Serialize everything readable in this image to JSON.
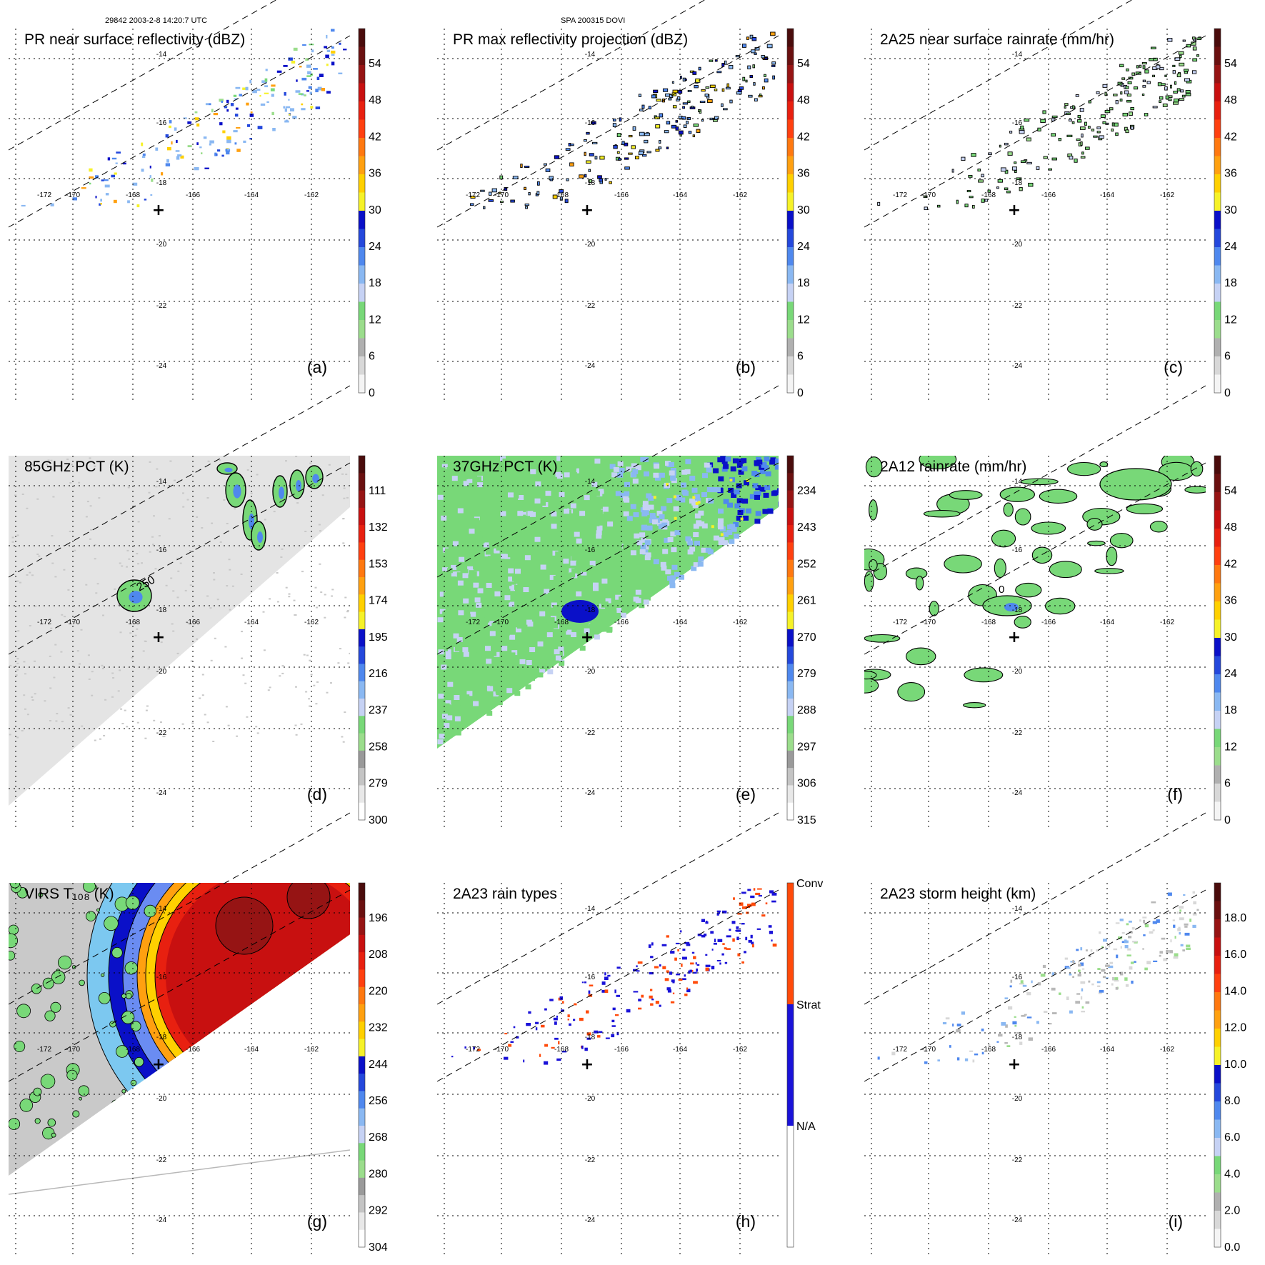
{
  "header": {
    "orbit_time": "29842 2003-2-8 14:20:7 UTC",
    "storm_id": "SPA 200315 DOVI"
  },
  "map": {
    "lon_labels": [
      "-172",
      "-170",
      "-168",
      "-166",
      "-164",
      "-162"
    ],
    "lat_labels": [
      "-14",
      "-16",
      "-18",
      "-20",
      "-22",
      "-24"
    ],
    "center_marker": "+"
  },
  "chart_data": [
    {
      "type": "heatmap",
      "panel": "(a)",
      "title": "PR near surface reflectivity (dBZ)",
      "cbar_ticks": [
        "54",
        "48",
        "42",
        "36",
        "30",
        "24",
        "18",
        "12",
        "6",
        "0"
      ],
      "field": "pr_swath_sparse",
      "contour_label": ""
    },
    {
      "type": "heatmap",
      "panel": "(b)",
      "title": "PR max reflectivity projection (dBZ)",
      "cbar_ticks": [
        "54",
        "48",
        "42",
        "36",
        "30",
        "24",
        "18",
        "12",
        "6",
        "0"
      ],
      "field": "pr_swath_outlined",
      "contour_label": ""
    },
    {
      "type": "heatmap",
      "panel": "(c)",
      "title": "2A25 near surface rainrate (mm/hr)",
      "cbar_ticks": [
        "54",
        "48",
        "42",
        "36",
        "30",
        "24",
        "18",
        "12",
        "6",
        "0"
      ],
      "field": "pr_rain",
      "contour_label": ""
    },
    {
      "type": "heatmap",
      "panel": "(d)",
      "title": "85GHz PCT (K)",
      "cbar_ticks": [
        "111",
        "132",
        "153",
        "174",
        "195",
        "216",
        "237",
        "258",
        "279",
        "300"
      ],
      "field": "pct85",
      "contour_label": "250"
    },
    {
      "type": "heatmap",
      "panel": "(e)",
      "title": "37GHz PCT (K)",
      "cbar_ticks": [
        "234",
        "243",
        "252",
        "261",
        "270",
        "279",
        "288",
        "297",
        "306",
        "315"
      ],
      "field": "pct37",
      "contour_label": ""
    },
    {
      "type": "heatmap",
      "panel": "(f)",
      "title": "2A12 rainrate (mm/hr)",
      "cbar_ticks": [
        "54",
        "48",
        "42",
        "36",
        "30",
        "24",
        "18",
        "12",
        "6",
        "0"
      ],
      "field": "tmi_rain",
      "contour_label": "0"
    },
    {
      "type": "heatmap",
      "panel": "(g)",
      "title": "VIRS T₁₀₈ (K)",
      "cbar_ticks": [
        "196",
        "208",
        "220",
        "232",
        "244",
        "256",
        "268",
        "280",
        "292",
        "304"
      ],
      "field": "virs",
      "contour_label": ""
    },
    {
      "type": "heatmap",
      "panel": "(h)",
      "title": "2A23 rain types",
      "cbar_ticks": [
        "Conv",
        "Strat",
        "N/A"
      ],
      "field": "raintype",
      "contour_label": ""
    },
    {
      "type": "heatmap",
      "panel": "(i)",
      "title": "2A23 storm height (km)",
      "cbar_ticks": [
        "18.0",
        "16.0",
        "14.0",
        "12.0",
        "10.0",
        "8.0",
        "6.0",
        "4.0",
        "2.0",
        "0.0"
      ],
      "field": "stormheight",
      "contour_label": ""
    }
  ],
  "colors": {
    "ramp": [
      "#f4f4f4",
      "#d8d8d8",
      "#b0b0b0",
      "#9bdd8c",
      "#78d878",
      "#c6d2f4",
      "#8ab8f2",
      "#4f88ee",
      "#2448dc",
      "#0a10c8",
      "#f6f228",
      "#ffd000",
      "#ffa010",
      "#ff7810",
      "#ff4010",
      "#e82010",
      "#c81010",
      "#961414",
      "#6a1010",
      "#4a0c0c"
    ],
    "rain_types": [
      "#ffffff",
      "#1a12d8",
      "#ff4a0a"
    ],
    "pct_cbar": [
      "#ffffff",
      "#e8e8e8",
      "#c4c4c4",
      "#9a9a9a",
      "#9bdd8c",
      "#78d878",
      "#c6d2f4",
      "#8ab8f2",
      "#4f88ee",
      "#2448dc",
      "#0a10c8",
      "#f6f228",
      "#ffd000",
      "#ffa010",
      "#ff7810",
      "#ff4010",
      "#e82010",
      "#c81010",
      "#961414",
      "#6a1010",
      "#4a0c0c"
    ]
  }
}
